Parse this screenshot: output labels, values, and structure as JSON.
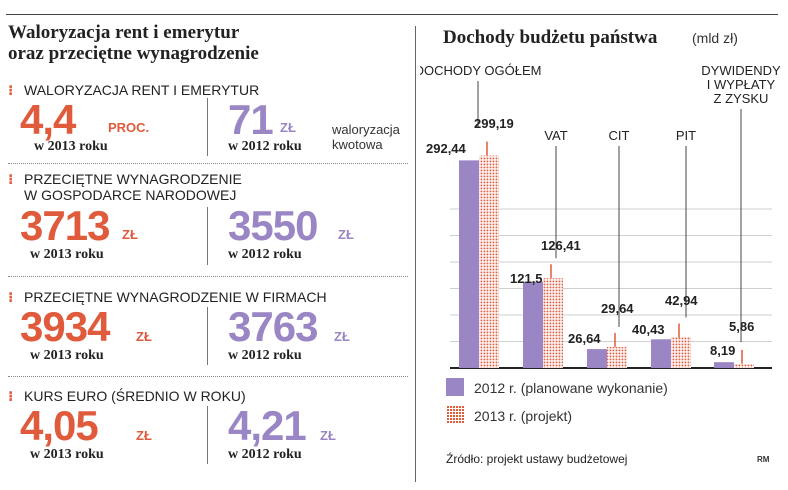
{
  "left": {
    "title_line1": "Waloryzacja rent i emerytur",
    "title_line2": "oraz przeciętne wynagrodzenie",
    "sections": [
      {
        "label_line1": "WALORYZACJA RENT I EMERYTUR",
        "label_line2": "",
        "a_value": "4,4",
        "a_unit": "PROC.",
        "a_year": "w 2013 roku",
        "b_value": "71",
        "b_unit": "ZŁ",
        "b_year": "w 2012 roku",
        "note_line1": "waloryzacja",
        "note_line2": "kwotowa"
      },
      {
        "label_line1": "PRZECIĘTNE WYNAGRODZENIE",
        "label_line2": "W GOSPODARCE NARODOWEJ",
        "a_value": "3713",
        "a_unit": "ZŁ",
        "a_year": "w 2013 roku",
        "b_value": "3550",
        "b_unit": "ZŁ",
        "b_year": "w 2012 roku"
      },
      {
        "label_line1": "PRZECIĘTNE WYNAGRODZENIE W FIRMACH",
        "label_line2": "",
        "a_value": "3934",
        "a_unit": "ZŁ",
        "a_year": "w 2013 roku",
        "b_value": "3763",
        "b_unit": "ZŁ",
        "b_year": "w 2012 roku"
      },
      {
        "label_line1": "KURS EURO (ŚREDNIO W ROKU)",
        "label_line2": "",
        "a_value": "4,05",
        "a_unit": "ZŁ",
        "a_year": "w 2013 roku",
        "b_value": "4,21",
        "b_unit": "ZŁ",
        "b_year": "w 2012 roku"
      }
    ],
    "bullet": "⁝",
    "colors": {
      "red": "#e05a3c",
      "purple": "#9b86c5"
    }
  },
  "right": {
    "title": "Dochody budżetu państwa",
    "unit": "(mld zł)",
    "legend_2012": "2012 r. (planowane wykonanie)",
    "legend_2013": "2013 r. (projekt)",
    "source": "Źródło: projekt ustawy budżetowej",
    "credit": "RM"
  },
  "chart_data": {
    "type": "bar",
    "categories": [
      "DOCHODY OGÓŁEM",
      "VAT",
      "CIT",
      "PIT",
      "DYWIDENDY I WYPŁATY Z ZYSKU"
    ],
    "category_labels": [
      [
        "DOCHODY OGÓŁEM"
      ],
      [
        "VAT"
      ],
      [
        "CIT"
      ],
      [
        "PIT"
      ],
      [
        "DYWIDENDY",
        "I WYPŁATY",
        "Z ZYSKU"
      ]
    ],
    "series": [
      {
        "name": "2012 r. (planowane wykonanie)",
        "values": [
          292.44,
          121.5,
          26.64,
          40.43,
          8.19
        ],
        "labels": [
          "292,44",
          "121,5",
          "26,64",
          "40,43",
          "8,19"
        ],
        "color": "#9b86c5"
      },
      {
        "name": "2013 r. (projekt)",
        "values": [
          299.19,
          126.41,
          29.64,
          42.94,
          5.86
        ],
        "labels": [
          "299,19",
          "126,41",
          "29,64",
          "42,94",
          "5,86"
        ],
        "color": "#e05a3c"
      }
    ],
    "grid": true,
    "unit": "(mld zł)"
  }
}
